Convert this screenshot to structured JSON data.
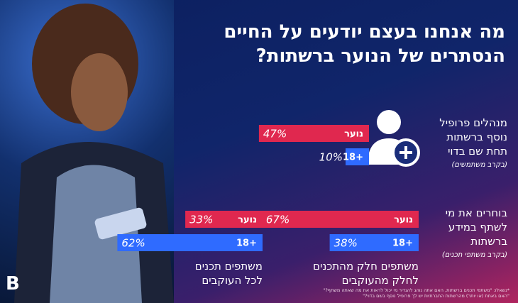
{
  "title": [
    "מה אנחנו בעצם יודעים על החיים",
    "הנסתרים של הנוער ברשתות?"
  ],
  "stats": [
    {
      "label": [
        "מנהלים פרופיל",
        "נוסף ברשתות",
        "תחת שם בדוי"
      ],
      "sublabel": "(בקרב משתמשים)",
      "bars": [
        {
          "name": "נוער",
          "value": 47,
          "value_label": "47%",
          "color": "#e0284f"
        },
        {
          "name": "18+",
          "value": 10,
          "value_label": "10%",
          "color": "#2f6bff"
        }
      ]
    },
    {
      "label": [
        "בוחרים את מי",
        "לשתף במידע",
        "ברשתות"
      ],
      "sublabel": "(בקרב משתפי תכנים)",
      "caption": [
        "משתפים חלק מהתכנים",
        "לחלק מהעוקבים"
      ],
      "bars": [
        {
          "name": "נוער",
          "value": 67,
          "value_label": "67%",
          "color": "#e0284f"
        },
        {
          "name": "18+",
          "value": 38,
          "value_label": "38%",
          "color": "#2f6bff"
        }
      ]
    },
    {
      "caption": [
        "משתפים תכנים",
        "לכל העוקבים"
      ],
      "bars": [
        {
          "name": "נוער",
          "value": 33,
          "value_label": "33%",
          "color": "#e0284f"
        },
        {
          "name": "18+",
          "value": 62,
          "value_label": "62%",
          "color": "#2f6bff"
        }
      ]
    }
  ],
  "logo": "B",
  "footnote": [
    "*נשאלו: \"משתפי תכנים ברשתות, האם אתה נוהג להגדיר מי יכול לראות את מה שאתה משתף?\"",
    "\"האם באחת (או יותר) מהרשתות החברתיות יש לך פרופיל נוסף בשם בדוי?\""
  ]
}
